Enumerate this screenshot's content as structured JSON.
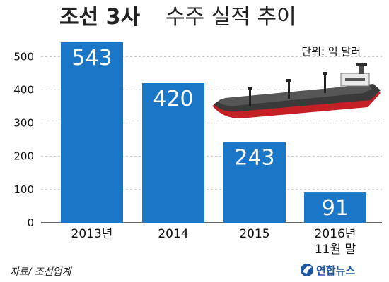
{
  "title_bold": "조선 3사",
  "title_rest": "수주 실적 추이",
  "unit": "단위: 억 달러",
  "source": "자료/ 조선업계",
  "logo_text": "연합뉴스",
  "colors": {
    "bar": "#1a76c6",
    "grid": "#b5b5b5",
    "axis": "#333333"
  },
  "chart_data": {
    "type": "bar",
    "categories": [
      "2013년",
      "2014",
      "2015",
      "2016년\n11월 말"
    ],
    "values": [
      543,
      420,
      243,
      91
    ],
    "value_labels": [
      "543",
      "420",
      "243",
      "91"
    ],
    "ylim": [
      0,
      560
    ],
    "yticks": [
      0,
      100,
      200,
      300,
      400,
      500
    ],
    "grid": true,
    "title": "조선 3사 수주 실적 추이",
    "unit": "단위: 억 달러"
  }
}
